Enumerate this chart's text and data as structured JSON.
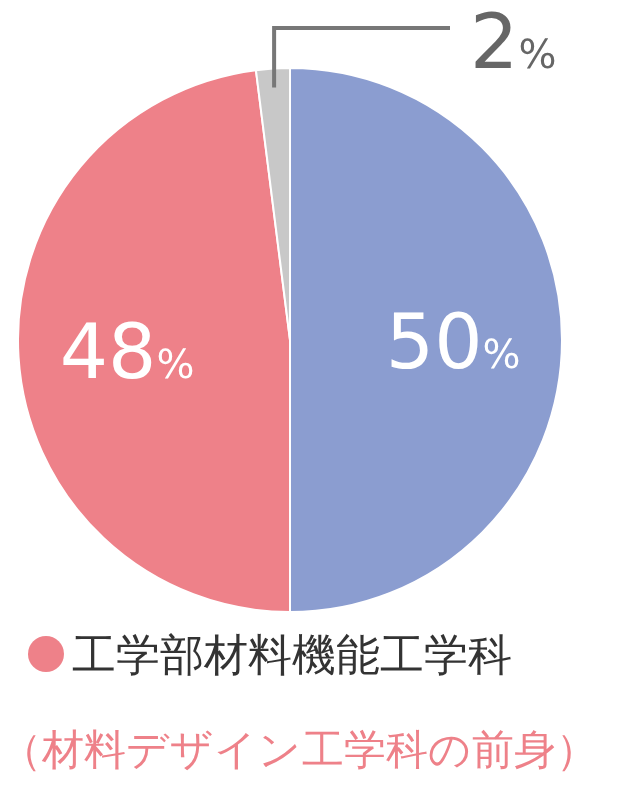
{
  "chart_data": {
    "type": "pie",
    "categories": [
      null,
      "工学部材料機能工学科",
      null
    ],
    "values": [
      50,
      48,
      2
    ],
    "colors": [
      "#8b9dd0",
      "#ee8189",
      "#c8c8c8"
    ],
    "value_labels": [
      "50%",
      "48%",
      "2%"
    ],
    "legend": "bottom",
    "annotations": [
      "（材料デザイン工学科の前身）"
    ]
  }
}
